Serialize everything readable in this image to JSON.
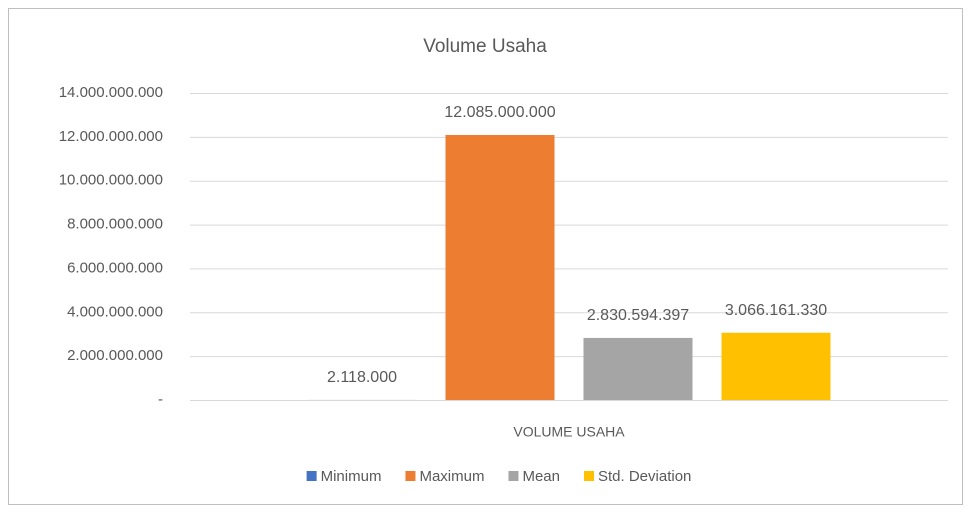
{
  "chart_data": {
    "type": "bar",
    "title": "Volume Usaha",
    "categories": [
      "VOLUME USAHA"
    ],
    "series": [
      {
        "name": "Minimum",
        "color": "#4472c4",
        "values": [
          2118000
        ],
        "value_labels": [
          "2.118.000"
        ]
      },
      {
        "name": "Maximum",
        "color": "#ed7d31",
        "values": [
          12085000000
        ],
        "value_labels": [
          "12.085.000.000"
        ]
      },
      {
        "name": "Mean",
        "color": "#a5a5a5",
        "values": [
          2830594397
        ],
        "value_labels": [
          "2.830.594.397"
        ]
      },
      {
        "name": "Std. Deviation",
        "color": "#ffc000",
        "values": [
          3066161330
        ],
        "value_labels": [
          "3.066.161.330"
        ]
      }
    ],
    "ylim": [
      0,
      14000000000
    ],
    "yticks": [
      {
        "value": 0,
        "label": "-"
      },
      {
        "value": 2000000000,
        "label": "2.000.000.000"
      },
      {
        "value": 4000000000,
        "label": "4.000.000.000"
      },
      {
        "value": 6000000000,
        "label": "6.000.000.000"
      },
      {
        "value": 8000000000,
        "label": "8.000.000.000"
      },
      {
        "value": 10000000000,
        "label": "10.000.000.000"
      },
      {
        "value": 12000000000,
        "label": "12.000.000.000"
      },
      {
        "value": 14000000000,
        "label": "14.000.000.000"
      }
    ],
    "grid": true,
    "legend": "bottom"
  }
}
